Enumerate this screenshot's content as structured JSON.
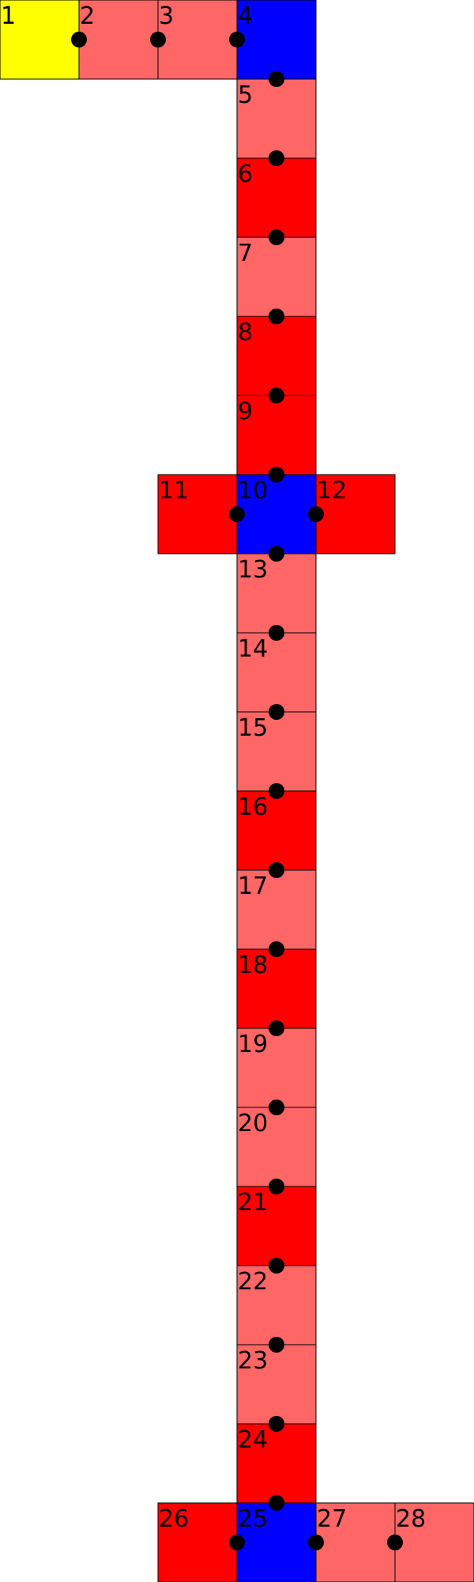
{
  "colors": {
    "yellow": "#ffff00",
    "light-red": "#ff6666",
    "red": "#ff0000",
    "blue": "#0000ff",
    "border": "#000000",
    "dot": "#000000"
  },
  "cells": [
    {
      "id": "1",
      "label": "1",
      "col": 0,
      "row": 0,
      "color": "yellow"
    },
    {
      "id": "2",
      "label": "2",
      "col": 1,
      "row": 0,
      "color": "light-red"
    },
    {
      "id": "3",
      "label": "3",
      "col": 2,
      "row": 0,
      "color": "light-red"
    },
    {
      "id": "4",
      "label": "4",
      "col": 3,
      "row": 0,
      "color": "blue"
    },
    {
      "id": "5",
      "label": "5",
      "col": 3,
      "row": 1,
      "color": "light-red"
    },
    {
      "id": "6",
      "label": "6",
      "col": 3,
      "row": 2,
      "color": "red"
    },
    {
      "id": "7",
      "label": "7",
      "col": 3,
      "row": 3,
      "color": "light-red"
    },
    {
      "id": "8",
      "label": "8",
      "col": 3,
      "row": 4,
      "color": "red"
    },
    {
      "id": "9",
      "label": "9",
      "col": 3,
      "row": 5,
      "color": "red"
    },
    {
      "id": "10",
      "label": "10",
      "col": 3,
      "row": 6,
      "color": "blue"
    },
    {
      "id": "11",
      "label": "11",
      "col": 2,
      "row": 6,
      "color": "red"
    },
    {
      "id": "12",
      "label": "12",
      "col": 4,
      "row": 6,
      "color": "red"
    },
    {
      "id": "13",
      "label": "13",
      "col": 3,
      "row": 7,
      "color": "light-red"
    },
    {
      "id": "14",
      "label": "14",
      "col": 3,
      "row": 8,
      "color": "light-red"
    },
    {
      "id": "15",
      "label": "15",
      "col": 3,
      "row": 9,
      "color": "light-red"
    },
    {
      "id": "16",
      "label": "16",
      "col": 3,
      "row": 10,
      "color": "red"
    },
    {
      "id": "17",
      "label": "17",
      "col": 3,
      "row": 11,
      "color": "light-red"
    },
    {
      "id": "18",
      "label": "18",
      "col": 3,
      "row": 12,
      "color": "red"
    },
    {
      "id": "19",
      "label": "19",
      "col": 3,
      "row": 13,
      "color": "light-red"
    },
    {
      "id": "20",
      "label": "20",
      "col": 3,
      "row": 14,
      "color": "light-red"
    },
    {
      "id": "21",
      "label": "21",
      "col": 3,
      "row": 15,
      "color": "red"
    },
    {
      "id": "22",
      "label": "22",
      "col": 3,
      "row": 16,
      "color": "light-red"
    },
    {
      "id": "23",
      "label": "23",
      "col": 3,
      "row": 17,
      "color": "light-red"
    },
    {
      "id": "24",
      "label": "24",
      "col": 3,
      "row": 18,
      "color": "red"
    },
    {
      "id": "25",
      "label": "25",
      "col": 3,
      "row": 19,
      "color": "blue"
    },
    {
      "id": "26",
      "label": "26",
      "col": 2,
      "row": 19,
      "color": "red"
    },
    {
      "id": "27",
      "label": "27",
      "col": 4,
      "row": 19,
      "color": "light-red"
    },
    {
      "id": "28",
      "label": "28",
      "col": 5,
      "row": 19,
      "color": "light-red"
    }
  ],
  "connections": [
    [
      "1",
      "2"
    ],
    [
      "2",
      "3"
    ],
    [
      "3",
      "4"
    ],
    [
      "4",
      "5"
    ],
    [
      "5",
      "6"
    ],
    [
      "6",
      "7"
    ],
    [
      "7",
      "8"
    ],
    [
      "8",
      "9"
    ],
    [
      "9",
      "10"
    ],
    [
      "11",
      "10"
    ],
    [
      "10",
      "12"
    ],
    [
      "10",
      "13"
    ],
    [
      "13",
      "14"
    ],
    [
      "14",
      "15"
    ],
    [
      "15",
      "16"
    ],
    [
      "16",
      "17"
    ],
    [
      "17",
      "18"
    ],
    [
      "18",
      "19"
    ],
    [
      "19",
      "20"
    ],
    [
      "20",
      "21"
    ],
    [
      "21",
      "22"
    ],
    [
      "22",
      "23"
    ],
    [
      "23",
      "24"
    ],
    [
      "24",
      "25"
    ],
    [
      "26",
      "25"
    ],
    [
      "25",
      "27"
    ],
    [
      "27",
      "28"
    ]
  ]
}
